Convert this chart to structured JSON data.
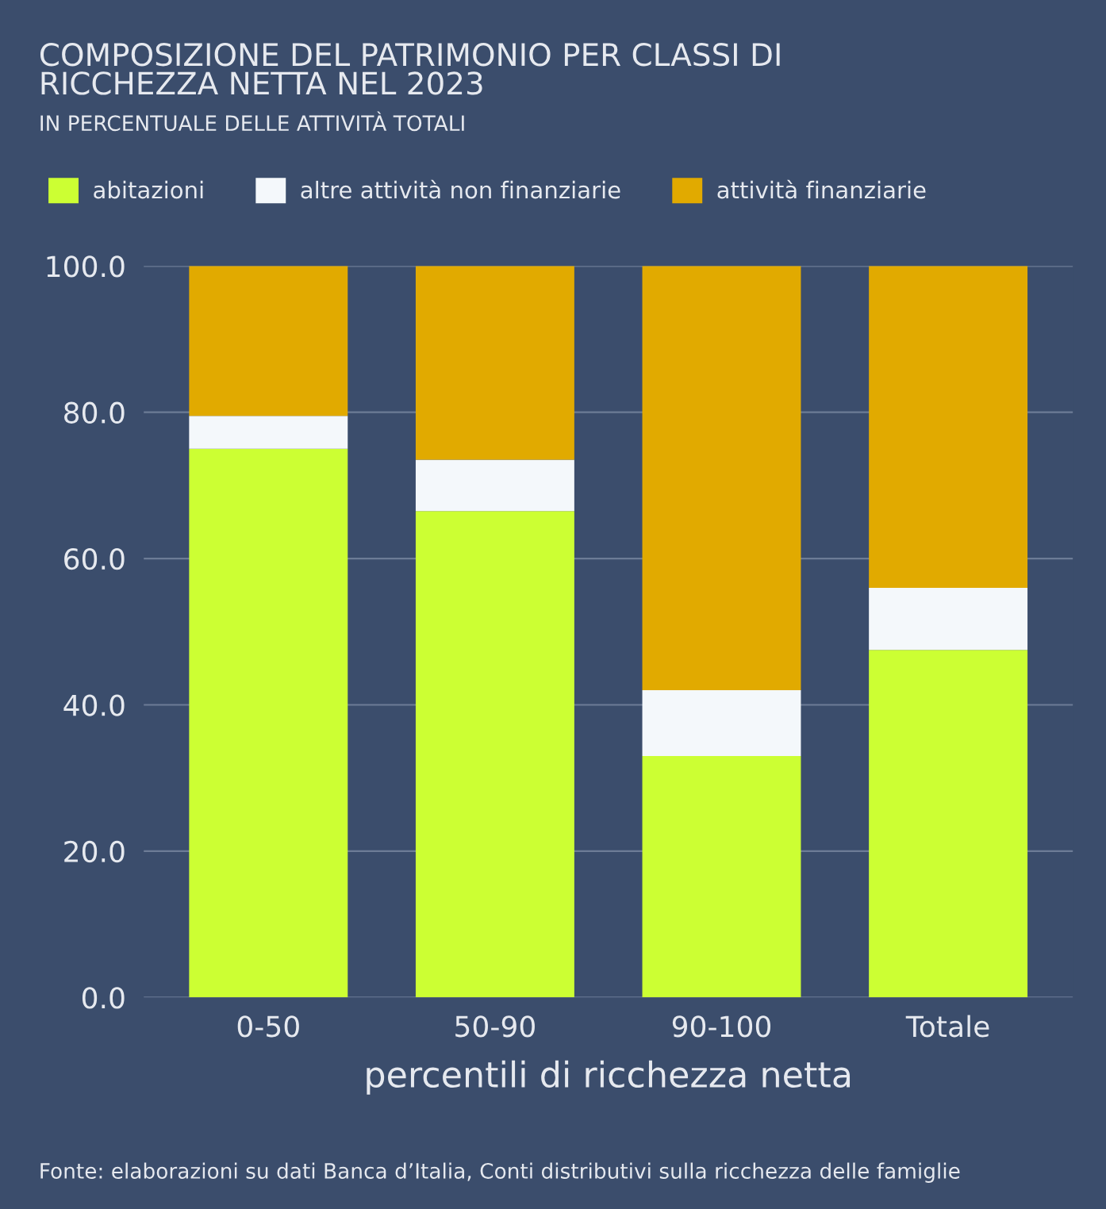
{
  "chart_data": {
    "type": "bar",
    "title": "COMPOSIZIONE DEL PATRIMONIO PER CLASSI DI\nRICCHEZZA NETTA NEL 2023",
    "subtitle": "IN PERCENTUALE DELLE ATTIVITÀ TOTALI",
    "xlabel": "percentili di ricchezza netta",
    "categories": [
      "0-50",
      "50-90",
      "90-100",
      "Totale"
    ],
    "stacked": true,
    "series": [
      {
        "name": "abitazioni",
        "color": "#ccff33",
        "values": [
          75,
          66.5,
          33,
          47.5
        ]
      },
      {
        "name": "altre attività non finanziarie",
        "color": "#f4f8fb",
        "values": [
          4.5,
          7,
          9,
          8.5
        ]
      },
      {
        "name": "attività finanziarie",
        "color": "#e1aa00",
        "values": [
          20.5,
          26.5,
          58,
          44
        ]
      }
    ],
    "ylim": [
      0,
      100
    ],
    "yticks": [
      {
        "value": 0,
        "label": "0.0"
      },
      {
        "value": 20,
        "label": "20.0"
      },
      {
        "value": 40,
        "label": "40.0"
      },
      {
        "value": 60,
        "label": "60.0"
      },
      {
        "value": 80,
        "label": "80.0"
      },
      {
        "value": 100,
        "label": "100.0"
      }
    ],
    "grid": "y",
    "legend": "top left",
    "annotations": [
      "Fonte: elaborazioni su dati Banca d’Italia, Conti distributivi sulla ricchezza delle famiglie"
    ]
  }
}
